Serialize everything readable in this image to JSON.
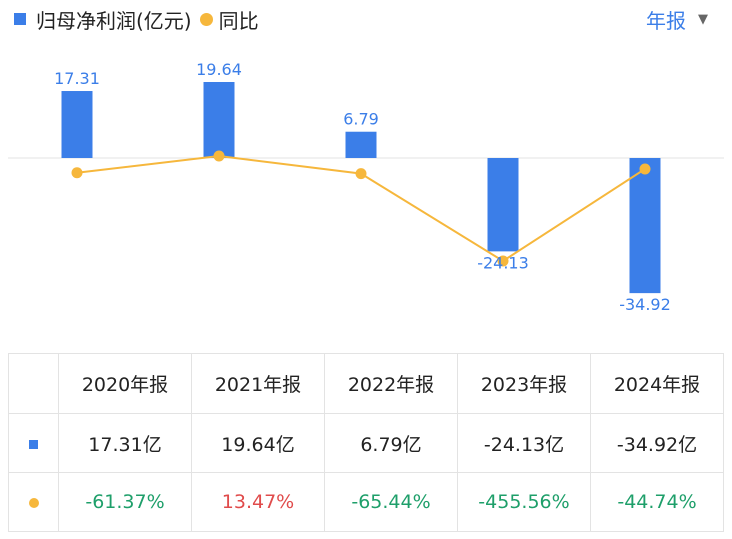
{
  "legend": {
    "bar_label": "归母净利润(亿元)",
    "line_label": "同比"
  },
  "period_selector": {
    "label": "年报",
    "caret": "▼"
  },
  "colors": {
    "bar": "#3b7ee8",
    "line": "#f6b73c",
    "positive": "#e04b4b",
    "negative": "#1e9f6a"
  },
  "chart_data": {
    "type": "bar",
    "categories": [
      "2020年报",
      "2021年报",
      "2022年报",
      "2023年报",
      "2024年报"
    ],
    "series": [
      {
        "name": "归母净利润(亿元)",
        "type": "bar",
        "values": [
          17.31,
          19.64,
          6.79,
          -24.13,
          -34.92
        ],
        "labels": [
          "17.31",
          "19.64",
          "6.79",
          "-24.13",
          "-34.92"
        ]
      },
      {
        "name": "同比",
        "type": "line",
        "values": [
          -61.37,
          13.47,
          -65.44,
          -455.56,
          -44.74
        ],
        "unit": "%"
      }
    ],
    "legend_position": "top-left",
    "zero_line": true
  },
  "table": {
    "headers": [
      "2020年报",
      "2021年报",
      "2022年报",
      "2023年报",
      "2024年报"
    ],
    "profit_row": [
      "17.31亿",
      "19.64亿",
      "6.79亿",
      "-24.13亿",
      "-34.92亿"
    ],
    "yoy_row": [
      "-61.37%",
      "13.47%",
      "-65.44%",
      "-455.56%",
      "-44.74%"
    ]
  }
}
